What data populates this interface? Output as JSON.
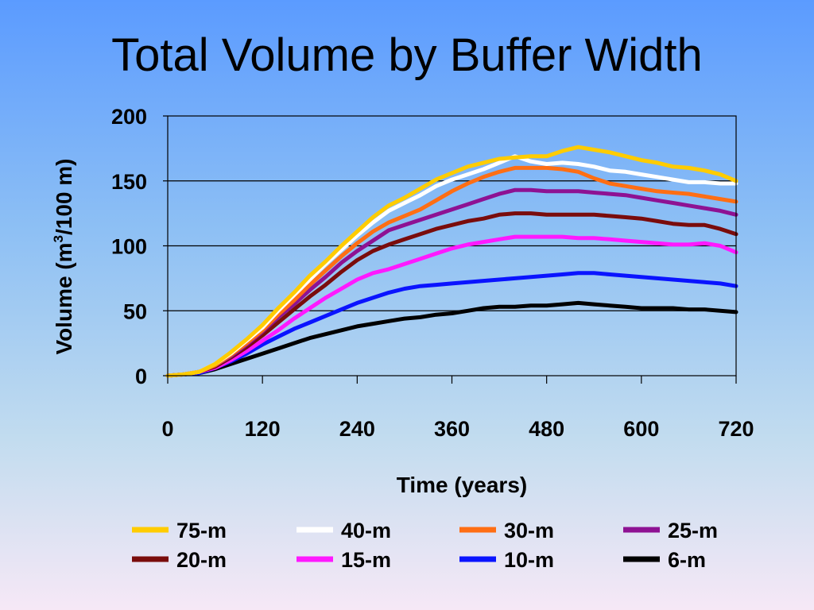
{
  "slide": {
    "title": "Total Volume by Buffer Width"
  },
  "chart_data": {
    "type": "line",
    "title": "Total Volume by Buffer Width",
    "xlabel": "Time (years)",
    "ylabel": "Volume (m3/100 m)",
    "ylabel_parts": {
      "before": "Volume (m",
      "sup": "3",
      "after": "/100 m)"
    },
    "xlim": [
      0,
      720
    ],
    "ylim": [
      0,
      200
    ],
    "xticks": [
      0,
      120,
      240,
      360,
      480,
      600,
      720
    ],
    "yticks": [
      0,
      50,
      100,
      150,
      200
    ],
    "grid": "horizontal",
    "legend_position": "bottom",
    "x": [
      0,
      20,
      40,
      60,
      80,
      100,
      120,
      140,
      160,
      180,
      200,
      220,
      240,
      260,
      280,
      300,
      320,
      340,
      360,
      380,
      400,
      420,
      440,
      460,
      480,
      500,
      520,
      540,
      560,
      580,
      600,
      620,
      640,
      660,
      680,
      700,
      720
    ],
    "series": [
      {
        "name": "75-m",
        "color": "#ffcc00",
        "values": [
          0,
          1,
          3,
          9,
          18,
          28,
          39,
          52,
          64,
          77,
          88,
          100,
          111,
          122,
          131,
          137,
          144,
          151,
          156,
          161,
          164,
          167,
          168,
          169,
          169,
          173,
          176,
          174,
          172,
          169,
          166,
          164,
          161,
          160,
          158,
          155,
          150
        ]
      },
      {
        "name": "40-m",
        "color": "#ffffff",
        "values": [
          0,
          1,
          3,
          9,
          17,
          27,
          37,
          50,
          62,
          74,
          86,
          97,
          108,
          118,
          127,
          133,
          139,
          146,
          151,
          155,
          159,
          164,
          169,
          165,
          163,
          164,
          163,
          161,
          158,
          157,
          155,
          153,
          151,
          149,
          149,
          148,
          148
        ]
      },
      {
        "name": "30-m",
        "color": "#ff6e14",
        "values": [
          0,
          1,
          3,
          8,
          16,
          25,
          35,
          47,
          58,
          70,
          81,
          92,
          102,
          111,
          118,
          123,
          128,
          135,
          142,
          148,
          153,
          157,
          160,
          160,
          160,
          159,
          157,
          152,
          148,
          146,
          144,
          142,
          141,
          140,
          138,
          136,
          134
        ]
      },
      {
        "name": "25-m",
        "color": "#8e1293",
        "values": [
          0,
          1,
          3,
          8,
          15,
          24,
          34,
          45,
          55,
          66,
          76,
          87,
          96,
          104,
          112,
          116,
          120,
          124,
          128,
          132,
          136,
          140,
          143,
          143,
          142,
          142,
          142,
          141,
          140,
          139,
          137,
          135,
          133,
          131,
          129,
          127,
          124
        ]
      },
      {
        "name": "20-m",
        "color": "#7a0c0c",
        "values": [
          0,
          1,
          3,
          7,
          14,
          22,
          31,
          41,
          51,
          61,
          70,
          80,
          89,
          96,
          101,
          105,
          109,
          113,
          116,
          119,
          121,
          124,
          125,
          125,
          124,
          124,
          124,
          124,
          123,
          122,
          121,
          119,
          117,
          116,
          116,
          113,
          109
        ]
      },
      {
        "name": "15-m",
        "color": "#ff19ff",
        "values": [
          0,
          1,
          3,
          6,
          12,
          19,
          27,
          35,
          44,
          52,
          60,
          67,
          74,
          79,
          82,
          86,
          90,
          94,
          98,
          101,
          103,
          105,
          107,
          107,
          107,
          107,
          106,
          106,
          105,
          104,
          103,
          102,
          101,
          101,
          102,
          100,
          95
        ]
      },
      {
        "name": "10-m",
        "color": "#0a14ff",
        "values": [
          0,
          1,
          2,
          6,
          11,
          17,
          24,
          30,
          36,
          41,
          46,
          51,
          56,
          60,
          64,
          67,
          69,
          70,
          71,
          72,
          73,
          74,
          75,
          76,
          77,
          78,
          79,
          79,
          78,
          77,
          76,
          75,
          74,
          73,
          72,
          71,
          69
        ]
      },
      {
        "name": "6-m",
        "color": "#000000",
        "values": [
          0,
          1,
          2,
          5,
          9,
          13,
          17,
          21,
          25,
          29,
          32,
          35,
          38,
          40,
          42,
          44,
          45,
          47,
          48,
          50,
          52,
          53,
          53,
          54,
          54,
          55,
          56,
          55,
          54,
          53,
          52,
          52,
          52,
          51,
          51,
          50,
          49
        ]
      }
    ]
  }
}
